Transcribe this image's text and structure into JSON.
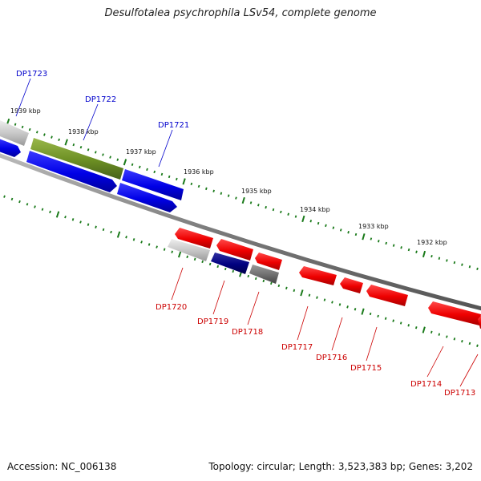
{
  "title": "Desulfotalea psychrophila LSv54, complete genome",
  "footer": {
    "accession": "Accession: NC_006138",
    "summary": "Topology: circular; Length: 3,523,383 bp; Genes: 3,202"
  },
  "colors": {
    "forward_label": "#0000cc",
    "reverse_label": "#cc0000",
    "tick": "#1a7a1a",
    "backbone": "#888888"
  },
  "kbp_labels": [
    "1939 kbp",
    "1938 kbp",
    "1937 kbp",
    "1936 kbp",
    "1935 kbp",
    "1934 kbp",
    "1933 kbp",
    "1932 kbp"
  ],
  "forward_genes": [
    "DP1723",
    "DP1722",
    "DP1721"
  ],
  "reverse_genes": [
    "DP1720",
    "DP1719",
    "DP1718",
    "DP1717",
    "DP1716",
    "DP1715",
    "DP1714",
    "DP1713"
  ]
}
